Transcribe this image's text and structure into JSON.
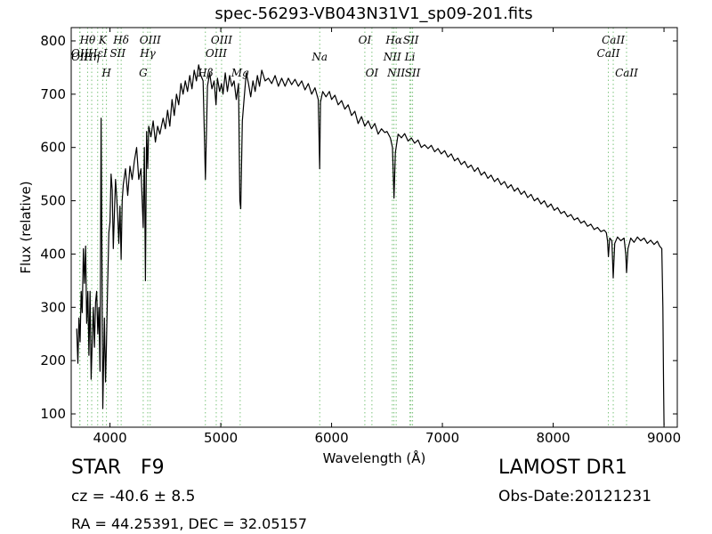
{
  "figure": {
    "title": "spec-56293-VB043N31V1_sp09-201.fits",
    "object_class": "STAR",
    "object_subclass": "F9",
    "survey": "LAMOST DR1",
    "cz_text": "cz = -40.6 ± 8.5",
    "obs_date": "Obs-Date:20121231",
    "radec_text": "RA = 44.25391, DEC = 32.05157"
  },
  "colors": {
    "spectrum": "#000000",
    "line_markers": "#7cc47c",
    "axes": "#000000",
    "background": "#ffffff"
  },
  "chart_data": {
    "type": "line",
    "title": "spec-56293-VB043N31V1_sp09-201.fits",
    "xlabel": "Wavelength (Å)",
    "ylabel": "Flux (relative)",
    "xlim": [
      3650,
      9120
    ],
    "ylim": [
      75,
      825
    ],
    "xticks": [
      4000,
      5000,
      6000,
      7000,
      8000,
      9000
    ],
    "yticks": [
      100,
      200,
      300,
      400,
      500,
      600,
      700,
      800
    ],
    "grid": false,
    "legend": "none",
    "series": [
      {
        "points": [
          [
            3700,
            260
          ],
          [
            3710,
            195
          ],
          [
            3720,
            280
          ],
          [
            3730,
            235
          ],
          [
            3740,
            330
          ],
          [
            3750,
            290
          ],
          [
            3760,
            410
          ],
          [
            3770,
            345
          ],
          [
            3780,
            415
          ],
          [
            3790,
            270
          ],
          [
            3800,
            330
          ],
          [
            3810,
            210
          ],
          [
            3820,
            330
          ],
          [
            3830,
            165
          ],
          [
            3840,
            240
          ],
          [
            3850,
            300
          ],
          [
            3860,
            225
          ],
          [
            3870,
            310
          ],
          [
            3880,
            330
          ],
          [
            3890,
            250
          ],
          [
            3900,
            300
          ],
          [
            3910,
            180
          ],
          [
            3920,
            655
          ],
          [
            3935,
            110
          ],
          [
            3950,
            280
          ],
          [
            3960,
            160
          ],
          [
            3968,
            230
          ],
          [
            3978,
            330
          ],
          [
            3990,
            440
          ],
          [
            4000,
            460
          ],
          [
            4010,
            550
          ],
          [
            4020,
            520
          ],
          [
            4030,
            410
          ],
          [
            4040,
            480
          ],
          [
            4050,
            540
          ],
          [
            4060,
            510
          ],
          [
            4070,
            470
          ],
          [
            4080,
            420
          ],
          [
            4090,
            490
          ],
          [
            4101,
            390
          ],
          [
            4110,
            500
          ],
          [
            4120,
            530
          ],
          [
            4140,
            560
          ],
          [
            4160,
            510
          ],
          [
            4180,
            565
          ],
          [
            4200,
            540
          ],
          [
            4220,
            575
          ],
          [
            4240,
            600
          ],
          [
            4260,
            540
          ],
          [
            4280,
            560
          ],
          [
            4300,
            450
          ],
          [
            4310,
            600
          ],
          [
            4320,
            350
          ],
          [
            4330,
            630
          ],
          [
            4341,
            560
          ],
          [
            4350,
            640
          ],
          [
            4370,
            620
          ],
          [
            4390,
            650
          ],
          [
            4410,
            610
          ],
          [
            4430,
            640
          ],
          [
            4450,
            625
          ],
          [
            4480,
            655
          ],
          [
            4500,
            635
          ],
          [
            4520,
            670
          ],
          [
            4540,
            640
          ],
          [
            4560,
            690
          ],
          [
            4580,
            660
          ],
          [
            4600,
            700
          ],
          [
            4620,
            680
          ],
          [
            4640,
            720
          ],
          [
            4660,
            700
          ],
          [
            4680,
            725
          ],
          [
            4700,
            705
          ],
          [
            4720,
            735
          ],
          [
            4740,
            710
          ],
          [
            4760,
            745
          ],
          [
            4780,
            725
          ],
          [
            4800,
            755
          ],
          [
            4820,
            735
          ],
          [
            4840,
            725
          ],
          [
            4861,
            540
          ],
          [
            4880,
            715
          ],
          [
            4900,
            740
          ],
          [
            4920,
            710
          ],
          [
            4940,
            725
          ],
          [
            4957,
            680
          ],
          [
            4970,
            730
          ],
          [
            4990,
            705
          ],
          [
            5007,
            720
          ],
          [
            5020,
            700
          ],
          [
            5040,
            740
          ],
          [
            5060,
            705
          ],
          [
            5080,
            735
          ],
          [
            5100,
            715
          ],
          [
            5120,
            725
          ],
          [
            5140,
            690
          ],
          [
            5160,
            720
          ],
          [
            5172,
            500
          ],
          [
            5180,
            485
          ],
          [
            5195,
            650
          ],
          [
            5210,
            690
          ],
          [
            5230,
            740
          ],
          [
            5250,
            720
          ],
          [
            5270,
            695
          ],
          [
            5290,
            725
          ],
          [
            5310,
            705
          ],
          [
            5330,
            735
          ],
          [
            5350,
            715
          ],
          [
            5370,
            745
          ],
          [
            5400,
            725
          ],
          [
            5430,
            730
          ],
          [
            5460,
            720
          ],
          [
            5490,
            735
          ],
          [
            5520,
            715
          ],
          [
            5550,
            730
          ],
          [
            5580,
            715
          ],
          [
            5610,
            730
          ],
          [
            5640,
            718
          ],
          [
            5670,
            728
          ],
          [
            5700,
            715
          ],
          [
            5730,
            725
          ],
          [
            5760,
            708
          ],
          [
            5790,
            720
          ],
          [
            5820,
            700
          ],
          [
            5850,
            712
          ],
          [
            5880,
            690
          ],
          [
            5893,
            560
          ],
          [
            5900,
            685
          ],
          [
            5920,
            705
          ],
          [
            5950,
            695
          ],
          [
            5980,
            705
          ],
          [
            6000,
            690
          ],
          [
            6030,
            698
          ],
          [
            6060,
            680
          ],
          [
            6090,
            688
          ],
          [
            6120,
            672
          ],
          [
            6150,
            680
          ],
          [
            6180,
            660
          ],
          [
            6210,
            668
          ],
          [
            6240,
            645
          ],
          [
            6270,
            658
          ],
          [
            6300,
            640
          ],
          [
            6330,
            650
          ],
          [
            6360,
            635
          ],
          [
            6390,
            645
          ],
          [
            6420,
            625
          ],
          [
            6450,
            635
          ],
          [
            6480,
            628
          ],
          [
            6500,
            630
          ],
          [
            6530,
            618
          ],
          [
            6550,
            600
          ],
          [
            6563,
            505
          ],
          [
            6575,
            590
          ],
          [
            6600,
            625
          ],
          [
            6630,
            618
          ],
          [
            6660,
            626
          ],
          [
            6690,
            612
          ],
          [
            6720,
            618
          ],
          [
            6750,
            608
          ],
          [
            6780,
            614
          ],
          [
            6810,
            600
          ],
          [
            6840,
            605
          ],
          [
            6870,
            598
          ],
          [
            6900,
            604
          ],
          [
            6930,
            592
          ],
          [
            6960,
            598
          ],
          [
            6990,
            588
          ],
          [
            7020,
            594
          ],
          [
            7050,
            582
          ],
          [
            7080,
            588
          ],
          [
            7110,
            575
          ],
          [
            7140,
            580
          ],
          [
            7170,
            568
          ],
          [
            7200,
            574
          ],
          [
            7230,
            562
          ],
          [
            7260,
            567
          ],
          [
            7290,
            555
          ],
          [
            7320,
            562
          ],
          [
            7350,
            548
          ],
          [
            7380,
            554
          ],
          [
            7410,
            542
          ],
          [
            7440,
            548
          ],
          [
            7470,
            536
          ],
          [
            7500,
            542
          ],
          [
            7530,
            530
          ],
          [
            7560,
            536
          ],
          [
            7590,
            524
          ],
          [
            7620,
            530
          ],
          [
            7650,
            518
          ],
          [
            7680,
            524
          ],
          [
            7710,
            512
          ],
          [
            7740,
            518
          ],
          [
            7770,
            506
          ],
          [
            7800,
            512
          ],
          [
            7830,
            500
          ],
          [
            7860,
            505
          ],
          [
            7890,
            494
          ],
          [
            7920,
            500
          ],
          [
            7950,
            488
          ],
          [
            7980,
            494
          ],
          [
            8010,
            482
          ],
          [
            8040,
            487
          ],
          [
            8070,
            476
          ],
          [
            8100,
            480
          ],
          [
            8130,
            470
          ],
          [
            8160,
            474
          ],
          [
            8190,
            464
          ],
          [
            8220,
            468
          ],
          [
            8250,
            458
          ],
          [
            8280,
            462
          ],
          [
            8310,
            452
          ],
          [
            8340,
            456
          ],
          [
            8370,
            446
          ],
          [
            8400,
            450
          ],
          [
            8430,
            442
          ],
          [
            8460,
            445
          ],
          [
            8480,
            440
          ],
          [
            8490,
            425
          ],
          [
            8498,
            395
          ],
          [
            8510,
            430
          ],
          [
            8530,
            425
          ],
          [
            8542,
            355
          ],
          [
            8555,
            420
          ],
          [
            8580,
            432
          ],
          [
            8610,
            425
          ],
          [
            8640,
            430
          ],
          [
            8655,
            400
          ],
          [
            8662,
            365
          ],
          [
            8675,
            410
          ],
          [
            8700,
            430
          ],
          [
            8730,
            422
          ],
          [
            8760,
            432
          ],
          [
            8790,
            425
          ],
          [
            8820,
            430
          ],
          [
            8850,
            420
          ],
          [
            8880,
            426
          ],
          [
            8910,
            418
          ],
          [
            8940,
            424
          ],
          [
            8960,
            415
          ],
          [
            8980,
            410
          ],
          [
            8990,
            300
          ],
          [
            8996,
            150
          ],
          [
            9000,
            78
          ]
        ]
      }
    ],
    "line_markers": [
      {
        "label": "OII",
        "x": 3727,
        "row": 1
      },
      {
        "label": "OII",
        "x": 3729,
        "row": 2
      },
      {
        "label": "Hθ",
        "x": 3798,
        "row": 0
      },
      {
        "label": "Hη",
        "x": 3835,
        "row": 2
      },
      {
        "label": "HεI",
        "x": 3889,
        "row": 1
      },
      {
        "label": "K",
        "x": 3934,
        "row": 0
      },
      {
        "label": "H",
        "x": 3968,
        "row": 3
      },
      {
        "label": "SII",
        "x": 4070,
        "row": 1
      },
      {
        "label": "Hδ",
        "x": 4101,
        "row": 0
      },
      {
        "label": "G",
        "x": 4300,
        "row": 3
      },
      {
        "label": "Hγ",
        "x": 4341,
        "row": 1
      },
      {
        "label": "OIII",
        "x": 4363,
        "row": 0
      },
      {
        "label": "Hβ",
        "x": 4861,
        "row": 3
      },
      {
        "label": "OIII",
        "x": 4959,
        "row": 1
      },
      {
        "label": "OIII",
        "x": 5007,
        "row": 0
      },
      {
        "label": "Mg",
        "x": 5175,
        "row": 3
      },
      {
        "label": "Na",
        "x": 5893,
        "row": 2
      },
      {
        "label": "OI",
        "x": 6300,
        "row": 0
      },
      {
        "label": "OI",
        "x": 6364,
        "row": 3
      },
      {
        "label": "NII",
        "x": 6548,
        "row": 2
      },
      {
        "label": "Hα",
        "x": 6563,
        "row": 0
      },
      {
        "label": "NII",
        "x": 6583,
        "row": 3
      },
      {
        "label": "Li",
        "x": 6707,
        "row": 2
      },
      {
        "label": "SII",
        "x": 6716,
        "row": 0
      },
      {
        "label": "SII",
        "x": 6731,
        "row": 3
      },
      {
        "label": "CaII",
        "x": 8498,
        "row": 1
      },
      {
        "label": "CaII",
        "x": 8542,
        "row": 0
      },
      {
        "label": "CaII",
        "x": 8662,
        "row": 3
      }
    ]
  }
}
